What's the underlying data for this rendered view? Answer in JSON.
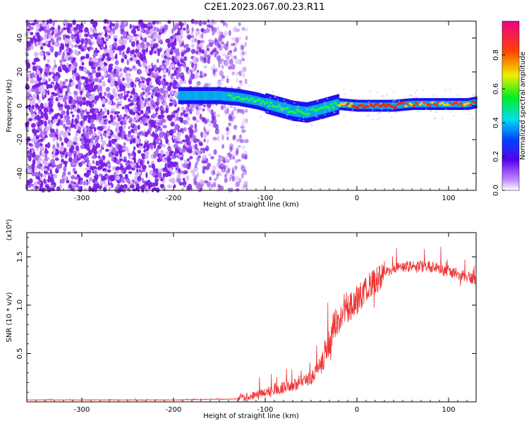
{
  "figure": {
    "title": "C2E1.2023.067.00.23.R11"
  },
  "chart_data": [
    {
      "type": "heatmap",
      "xlabel": "Height of straight line (km)",
      "ylabel": "Frequency (Hz)",
      "xlim": [
        -360,
        130
      ],
      "ylim": [
        -50,
        50
      ],
      "xticks": [
        -300,
        -200,
        -100,
        0,
        100
      ],
      "xtick_labels": [
        "-300",
        "-200",
        "-100",
        "0",
        "100"
      ],
      "yticks": [
        -40,
        -20,
        0,
        20,
        40
      ],
      "ytick_labels": [
        "-40",
        "-20",
        "0",
        "20",
        "40"
      ],
      "colorbar": {
        "label": "Normalized spectral amplitude",
        "range": [
          0,
          1
        ],
        "ticks": [
          0,
          0.2,
          0.4,
          0.6,
          0.8
        ],
        "tick_labels": [
          "0.0",
          "0.2",
          "0.4",
          "0.6",
          "0.8"
        ]
      },
      "ridge": {
        "x": [
          -190,
          -150,
          -130,
          -110,
          -90,
          -70,
          -55,
          -40,
          -20,
          0,
          20,
          40,
          60,
          80,
          100,
          120,
          130
        ],
        "freq": [
          6,
          6,
          5,
          3,
          0,
          -3,
          -4,
          -2,
          1,
          0,
          0,
          0,
          1,
          1,
          1,
          1,
          2
        ]
      },
      "grid": false
    },
    {
      "type": "line",
      "xlabel": "Height of straight line (km)",
      "ylabel": "SNR (10 * v/v)",
      "y_multiplier": "(x10⁴)",
      "xlim": [
        -360,
        130
      ],
      "ylim": [
        0,
        1.75
      ],
      "xticks": [
        -300,
        -200,
        -100,
        0,
        100
      ],
      "xtick_labels": [
        "-300",
        "-200",
        "-100",
        "0",
        "100"
      ],
      "yticks": [
        0.5,
        1.0,
        1.5
      ],
      "ytick_labels": [
        "0.5",
        "1.0",
        "1.5"
      ],
      "color": "#ee3333",
      "x": [
        -360,
        -300,
        -200,
        -130,
        -120,
        -100,
        -80,
        -60,
        -50,
        -40,
        -30,
        -25,
        -20,
        -10,
        0,
        10,
        20,
        30,
        40,
        50,
        60,
        80,
        100,
        120,
        130
      ],
      "y": [
        0.02,
        0.02,
        0.02,
        0.03,
        0.05,
        0.1,
        0.15,
        0.2,
        0.25,
        0.4,
        0.6,
        0.8,
        0.85,
        0.95,
        1.05,
        1.15,
        1.25,
        1.33,
        1.38,
        1.4,
        1.4,
        1.4,
        1.35,
        1.3,
        1.25
      ],
      "grid": false
    }
  ]
}
